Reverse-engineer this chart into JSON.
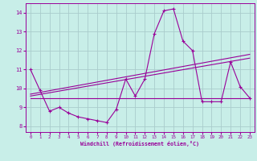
{
  "xlabel": "Windchill (Refroidissement éolien,°C)",
  "bg_color": "#c8eee8",
  "line_color": "#990099",
  "grid_color": "#aacccc",
  "x_ticks": [
    0,
    1,
    2,
    3,
    4,
    5,
    6,
    7,
    8,
    9,
    10,
    11,
    12,
    13,
    14,
    15,
    16,
    17,
    18,
    19,
    20,
    21,
    22,
    23
  ],
  "y_ticks": [
    8,
    9,
    10,
    11,
    12,
    13,
    14
  ],
  "xlim": [
    -0.5,
    23.5
  ],
  "ylim": [
    7.7,
    14.5
  ],
  "line1_x": [
    0,
    1,
    2,
    3,
    4,
    5,
    6,
    7,
    8,
    9,
    10,
    11,
    12,
    13,
    14,
    15,
    16,
    17,
    18,
    19,
    20,
    21,
    22,
    23
  ],
  "line1_y": [
    11.0,
    9.9,
    8.8,
    9.0,
    8.7,
    8.5,
    8.4,
    8.3,
    8.2,
    8.9,
    10.5,
    9.6,
    10.5,
    12.9,
    14.1,
    14.2,
    12.5,
    12.0,
    9.3,
    9.3,
    9.3,
    11.4,
    10.1,
    9.5
  ],
  "line2_x": [
    0,
    23
  ],
  "line2_y": [
    9.5,
    9.5
  ],
  "line3_x": [
    0,
    23
  ],
  "line3_y": [
    9.6,
    11.6
  ],
  "line4_x": [
    0,
    23
  ],
  "line4_y": [
    9.7,
    11.8
  ]
}
